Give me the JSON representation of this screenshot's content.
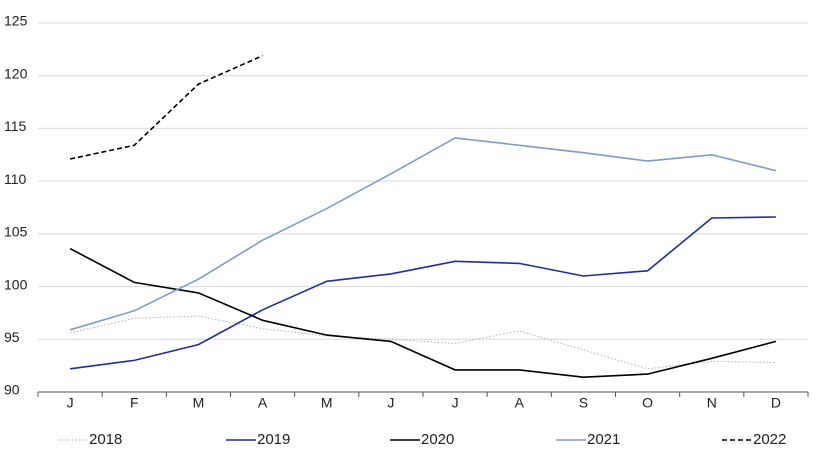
{
  "chart_data": {
    "type": "line",
    "categories": [
      "J",
      "F",
      "M",
      "A",
      "M",
      "J",
      "J",
      "A",
      "S",
      "O",
      "N",
      "D"
    ],
    "series": [
      {
        "name": "2018",
        "color": "#b0b0b0",
        "linestyle": "dotted",
        "values": [
          95.6,
          97.0,
          97.2,
          96.0,
          95.3,
          95.0,
          94.6,
          95.8,
          94.0,
          92.2,
          92.9,
          92.8
        ]
      },
      {
        "name": "2019",
        "color": "#1f2e9c",
        "linestyle": "solid",
        "values": [
          92.2,
          93.0,
          94.5,
          97.8,
          100.5,
          101.2,
          102.4,
          102.2,
          101.0,
          101.5,
          106.5,
          106.6
        ]
      },
      {
        "name": "2020",
        "color": "#000000",
        "linestyle": "solid",
        "values": [
          103.6,
          100.4,
          99.4,
          96.8,
          95.4,
          94.8,
          92.1,
          92.1,
          91.4,
          91.7,
          93.2,
          94.8
        ]
      },
      {
        "name": "2021",
        "color": "#7d9cc8",
        "linestyle": "solid",
        "values": [
          95.9,
          97.7,
          100.7,
          104.4,
          107.4,
          110.7,
          114.1,
          113.4,
          112.7,
          111.9,
          112.5,
          111.0
        ]
      },
      {
        "name": "2022",
        "color": "#000000",
        "linestyle": "dashed",
        "values": [
          112.1,
          113.4,
          119.2,
          121.9,
          null,
          null,
          null,
          null,
          null,
          null,
          null,
          null
        ]
      }
    ],
    "ylim": [
      90,
      125
    ],
    "yticks": [
      90,
      95,
      100,
      105,
      110,
      115,
      120,
      125
    ],
    "grid": true,
    "legend": "bottom"
  }
}
